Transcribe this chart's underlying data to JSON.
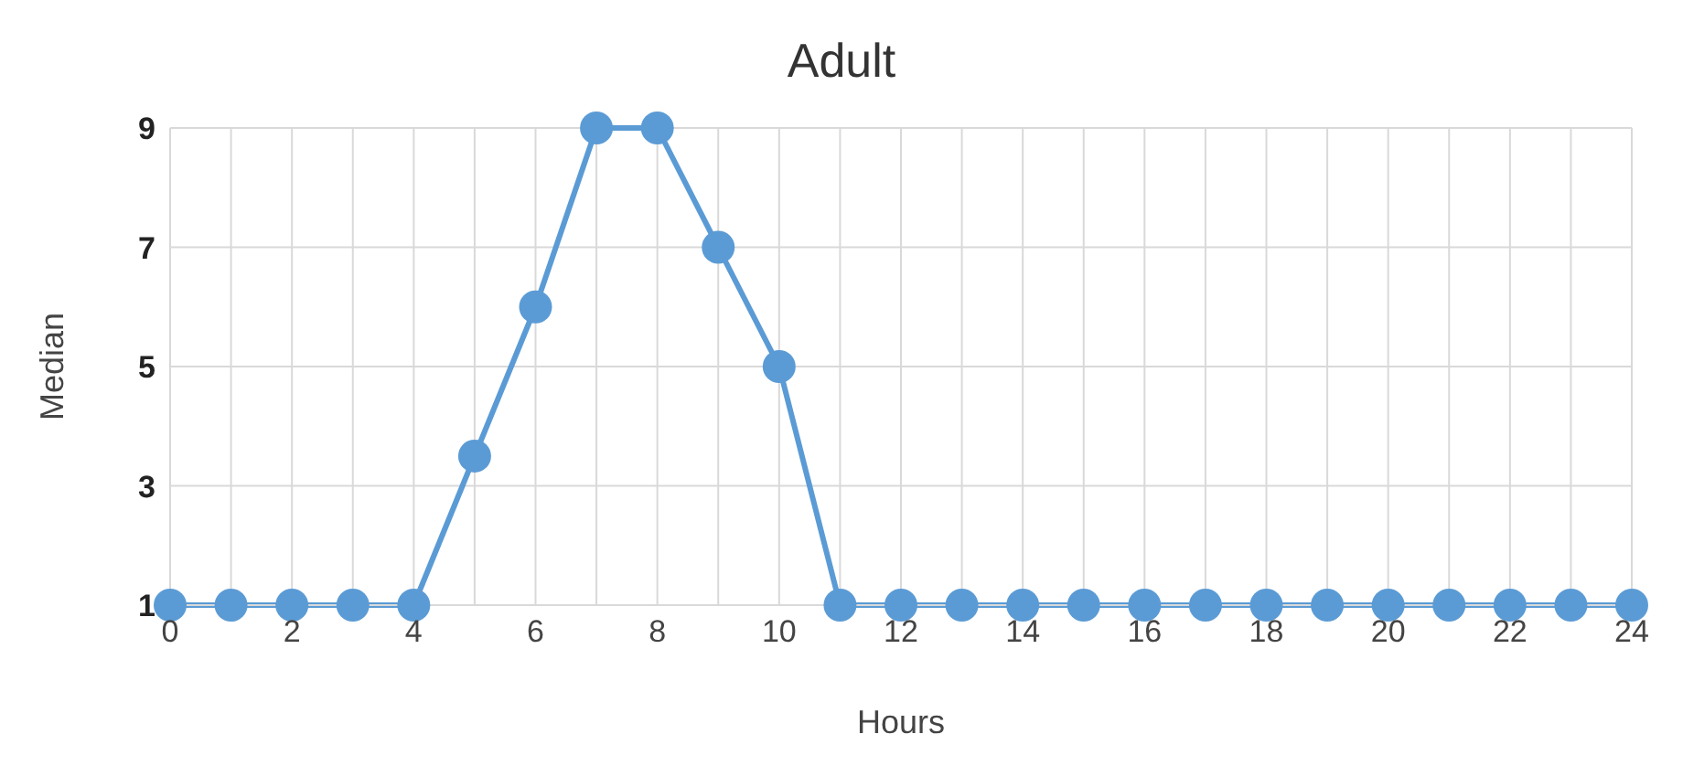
{
  "chart_data": {
    "type": "line",
    "title": "Adult",
    "xlabel": "Hours",
    "ylabel": "Median",
    "x": [
      0,
      1,
      2,
      3,
      4,
      5,
      6,
      7,
      8,
      9,
      10,
      11,
      12,
      13,
      14,
      15,
      16,
      17,
      18,
      19,
      20,
      21,
      22,
      23,
      24
    ],
    "series": [
      {
        "color": "#5b9bd5",
        "values": [
          1,
          1,
          1,
          1,
          1,
          3.5,
          6,
          9,
          9,
          7,
          5,
          1,
          1,
          1,
          1,
          1,
          1,
          1,
          1,
          1,
          1,
          1,
          1,
          1,
          1
        ]
      }
    ],
    "xlim": [
      0,
      24
    ],
    "xticks": [
      0,
      {
        "value": 1,
        "label": null
      },
      2,
      {
        "value": 3,
        "label": null
      },
      4,
      {
        "value": 5,
        "label": null
      },
      6,
      {
        "value": 7,
        "label": null
      },
      8,
      {
        "value": 9,
        "label": null
      },
      10,
      {
        "value": 11,
        "label": null
      },
      12,
      {
        "value": 13,
        "label": null
      },
      14,
      {
        "value": 15,
        "label": null
      },
      16,
      {
        "value": 17,
        "label": null
      },
      18,
      {
        "value": 19,
        "label": null
      },
      20,
      {
        "value": 21,
        "label": null
      },
      22,
      {
        "value": 23,
        "label": null
      },
      24
    ],
    "ylim": [
      1,
      9
    ],
    "yticks": [
      1,
      3,
      5,
      7,
      9
    ],
    "grid": true,
    "marker": "circle",
    "line_style": "solid"
  }
}
